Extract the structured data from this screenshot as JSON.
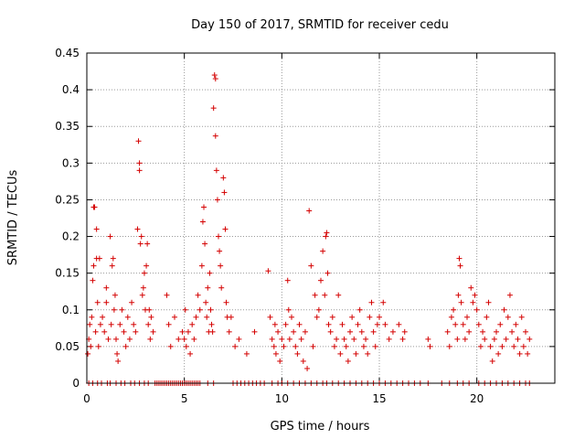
{
  "chart_data": {
    "type": "scatter",
    "title": "Day 150 of 2017, SRMTID for receiver cedu",
    "xlabel": "GPS time / hours",
    "ylabel": "SRMTID / TECUs",
    "xlim": [
      0,
      24
    ],
    "ylim": [
      0,
      0.45
    ],
    "xticks": [
      0,
      5,
      10,
      15,
      20
    ],
    "yticks": [
      0,
      0.05,
      0.1,
      0.15,
      0.2,
      0.25,
      0.3,
      0.35,
      0.4,
      0.45
    ],
    "marker": "+",
    "color": "#d40000",
    "grid": true,
    "series": [
      {
        "name": "SRMTID",
        "points": [
          [
            0.05,
            0.04
          ],
          [
            0.1,
            0.06
          ],
          [
            0.15,
            0.08
          ],
          [
            0.2,
            0.05
          ],
          [
            0.25,
            0.09
          ],
          [
            0.3,
            0.14
          ],
          [
            0.35,
            0.16
          ],
          [
            0.35,
            0.24
          ],
          [
            0.4,
            0.24
          ],
          [
            0.45,
            0.07
          ],
          [
            0.5,
            0.17
          ],
          [
            0.5,
            0.21
          ],
          [
            0.55,
            0.11
          ],
          [
            0.6,
            0.05
          ],
          [
            0.65,
            0.17
          ],
          [
            0.7,
            0.08
          ],
          [
            0.8,
            0.09
          ],
          [
            0.9,
            0.07
          ],
          [
            1.0,
            0.11
          ],
          [
            1.0,
            0.13
          ],
          [
            1.1,
            0.06
          ],
          [
            1.2,
            0.2
          ],
          [
            1.25,
            0.08
          ],
          [
            1.3,
            0.16
          ],
          [
            1.35,
            0.17
          ],
          [
            1.4,
            0.1
          ],
          [
            1.45,
            0.12
          ],
          [
            1.5,
            0.06
          ],
          [
            1.55,
            0.04
          ],
          [
            1.6,
            0.03
          ],
          [
            1.7,
            0.08
          ],
          [
            1.8,
            0.1
          ],
          [
            1.9,
            0.07
          ],
          [
            2.0,
            0.05
          ],
          [
            2.1,
            0.09
          ],
          [
            2.2,
            0.06
          ],
          [
            2.3,
            0.11
          ],
          [
            2.4,
            0.08
          ],
          [
            2.5,
            0.07
          ],
          [
            2.6,
            0.21
          ],
          [
            2.65,
            0.33
          ],
          [
            2.7,
            0.29
          ],
          [
            2.7,
            0.3
          ],
          [
            2.75,
            0.19
          ],
          [
            2.8,
            0.2
          ],
          [
            2.85,
            0.12
          ],
          [
            2.9,
            0.13
          ],
          [
            2.95,
            0.15
          ],
          [
            3.0,
            0.1
          ],
          [
            3.05,
            0.16
          ],
          [
            3.1,
            0.19
          ],
          [
            3.15,
            0.08
          ],
          [
            3.2,
            0.1
          ],
          [
            3.25,
            0.06
          ],
          [
            3.3,
            0.09
          ],
          [
            3.4,
            0.07
          ],
          [
            4.1,
            0.12
          ],
          [
            4.2,
            0.08
          ],
          [
            4.3,
            0.05
          ],
          [
            4.5,
            0.09
          ],
          [
            4.7,
            0.06
          ],
          [
            4.9,
            0.07
          ],
          [
            5.0,
            0.06
          ],
          [
            5.05,
            0.1
          ],
          [
            5.1,
            0.05
          ],
          [
            5.2,
            0.07
          ],
          [
            5.3,
            0.04
          ],
          [
            5.4,
            0.08
          ],
          [
            5.5,
            0.06
          ],
          [
            5.6,
            0.09
          ],
          [
            5.7,
            0.12
          ],
          [
            5.8,
            0.1
          ],
          [
            5.9,
            0.16
          ],
          [
            5.95,
            0.22
          ],
          [
            6.0,
            0.24
          ],
          [
            6.05,
            0.19
          ],
          [
            6.1,
            0.11
          ],
          [
            6.15,
            0.09
          ],
          [
            6.2,
            0.13
          ],
          [
            6.25,
            0.07
          ],
          [
            6.3,
            0.15
          ],
          [
            6.35,
            0.1
          ],
          [
            6.4,
            0.08
          ],
          [
            6.45,
            0.07
          ],
          [
            6.5,
            0.375
          ],
          [
            6.55,
            0.42
          ],
          [
            6.6,
            0.415
          ],
          [
            6.6,
            0.337
          ],
          [
            6.65,
            0.29
          ],
          [
            6.7,
            0.25
          ],
          [
            6.75,
            0.2
          ],
          [
            6.8,
            0.18
          ],
          [
            6.85,
            0.16
          ],
          [
            6.9,
            0.13
          ],
          [
            7.0,
            0.28
          ],
          [
            7.05,
            0.26
          ],
          [
            7.1,
            0.21
          ],
          [
            7.15,
            0.11
          ],
          [
            7.2,
            0.09
          ],
          [
            7.3,
            0.07
          ],
          [
            7.4,
            0.09
          ],
          [
            7.6,
            0.05
          ],
          [
            7.8,
            0.06
          ],
          [
            8.2,
            0.04
          ],
          [
            8.6,
            0.07
          ],
          [
            9.3,
            0.153
          ],
          [
            9.4,
            0.09
          ],
          [
            9.5,
            0.06
          ],
          [
            9.6,
            0.05
          ],
          [
            9.65,
            0.08
          ],
          [
            9.7,
            0.04
          ],
          [
            9.8,
            0.07
          ],
          [
            9.9,
            0.03
          ],
          [
            10.0,
            0.06
          ],
          [
            10.1,
            0.05
          ],
          [
            10.2,
            0.08
          ],
          [
            10.3,
            0.14
          ],
          [
            10.35,
            0.1
          ],
          [
            10.4,
            0.06
          ],
          [
            10.5,
            0.09
          ],
          [
            10.6,
            0.07
          ],
          [
            10.7,
            0.05
          ],
          [
            10.8,
            0.04
          ],
          [
            10.9,
            0.08
          ],
          [
            11.0,
            0.06
          ],
          [
            11.1,
            0.03
          ],
          [
            11.2,
            0.07
          ],
          [
            11.3,
            0.02
          ],
          [
            11.4,
            0.235
          ],
          [
            11.5,
            0.16
          ],
          [
            11.6,
            0.05
          ],
          [
            11.7,
            0.12
          ],
          [
            11.8,
            0.09
          ],
          [
            11.9,
            0.1
          ],
          [
            12.0,
            0.14
          ],
          [
            12.1,
            0.18
          ],
          [
            12.2,
            0.12
          ],
          [
            12.25,
            0.2
          ],
          [
            12.3,
            0.205
          ],
          [
            12.35,
            0.15
          ],
          [
            12.4,
            0.08
          ],
          [
            12.5,
            0.07
          ],
          [
            12.6,
            0.09
          ],
          [
            12.7,
            0.05
          ],
          [
            12.8,
            0.06
          ],
          [
            12.9,
            0.12
          ],
          [
            13.0,
            0.04
          ],
          [
            13.1,
            0.08
          ],
          [
            13.2,
            0.06
          ],
          [
            13.3,
            0.05
          ],
          [
            13.4,
            0.03
          ],
          [
            13.5,
            0.07
          ],
          [
            13.6,
            0.09
          ],
          [
            13.7,
            0.06
          ],
          [
            13.8,
            0.04
          ],
          [
            13.9,
            0.08
          ],
          [
            14.0,
            0.1
          ],
          [
            14.1,
            0.07
          ],
          [
            14.2,
            0.05
          ],
          [
            14.3,
            0.06
          ],
          [
            14.4,
            0.04
          ],
          [
            14.5,
            0.09
          ],
          [
            14.6,
            0.11
          ],
          [
            14.7,
            0.07
          ],
          [
            14.8,
            0.05
          ],
          [
            14.9,
            0.08
          ],
          [
            15.0,
            0.09
          ],
          [
            15.2,
            0.11
          ],
          [
            15.3,
            0.08
          ],
          [
            15.5,
            0.06
          ],
          [
            15.7,
            0.07
          ],
          [
            16.0,
            0.08
          ],
          [
            16.2,
            0.06
          ],
          [
            16.3,
            0.07
          ],
          [
            17.5,
            0.06
          ],
          [
            17.6,
            0.05
          ],
          [
            18.5,
            0.07
          ],
          [
            18.6,
            0.05
          ],
          [
            18.7,
            0.09
          ],
          [
            18.8,
            0.1
          ],
          [
            18.9,
            0.08
          ],
          [
            19.0,
            0.06
          ],
          [
            19.05,
            0.12
          ],
          [
            19.1,
            0.17
          ],
          [
            19.15,
            0.16
          ],
          [
            19.2,
            0.11
          ],
          [
            19.3,
            0.08
          ],
          [
            19.4,
            0.06
          ],
          [
            19.5,
            0.09
          ],
          [
            19.6,
            0.07
          ],
          [
            19.7,
            0.13
          ],
          [
            19.8,
            0.11
          ],
          [
            19.9,
            0.12
          ],
          [
            20.0,
            0.1
          ],
          [
            20.1,
            0.08
          ],
          [
            20.2,
            0.05
          ],
          [
            20.3,
            0.07
          ],
          [
            20.4,
            0.06
          ],
          [
            20.5,
            0.09
          ],
          [
            20.6,
            0.11
          ],
          [
            20.7,
            0.05
          ],
          [
            20.8,
            0.03
          ],
          [
            20.9,
            0.06
          ],
          [
            21.0,
            0.07
          ],
          [
            21.1,
            0.04
          ],
          [
            21.2,
            0.08
          ],
          [
            21.3,
            0.05
          ],
          [
            21.4,
            0.1
          ],
          [
            21.5,
            0.06
          ],
          [
            21.6,
            0.09
          ],
          [
            21.7,
            0.12
          ],
          [
            21.8,
            0.07
          ],
          [
            21.9,
            0.05
          ],
          [
            22.0,
            0.08
          ],
          [
            22.1,
            0.06
          ],
          [
            22.2,
            0.04
          ],
          [
            22.3,
            0.09
          ],
          [
            22.4,
            0.05
          ],
          [
            22.5,
            0.07
          ],
          [
            22.6,
            0.04
          ],
          [
            22.7,
            0.06
          ],
          [
            0.1,
            0
          ],
          [
            0.3,
            0
          ],
          [
            0.55,
            0
          ],
          [
            0.75,
            0
          ],
          [
            1.05,
            0
          ],
          [
            1.2,
            0
          ],
          [
            1.5,
            0
          ],
          [
            1.75,
            0
          ],
          [
            1.95,
            0
          ],
          [
            2.25,
            0
          ],
          [
            2.45,
            0
          ],
          [
            2.7,
            0
          ],
          [
            2.95,
            0
          ],
          [
            3.15,
            0
          ],
          [
            3.5,
            0
          ],
          [
            3.6,
            0
          ],
          [
            3.7,
            0
          ],
          [
            3.8,
            0
          ],
          [
            3.9,
            0
          ],
          [
            4.0,
            0
          ],
          [
            4.1,
            0
          ],
          [
            4.2,
            0
          ],
          [
            4.3,
            0
          ],
          [
            4.4,
            0
          ],
          [
            4.5,
            0
          ],
          [
            4.6,
            0
          ],
          [
            4.7,
            0
          ],
          [
            4.8,
            0
          ],
          [
            4.9,
            0
          ],
          [
            5.0,
            0
          ],
          [
            5.1,
            0
          ],
          [
            5.2,
            0
          ],
          [
            5.3,
            0
          ],
          [
            5.4,
            0
          ],
          [
            5.5,
            0
          ],
          [
            5.6,
            0
          ],
          [
            5.7,
            0
          ],
          [
            5.8,
            0
          ],
          [
            6.2,
            0
          ],
          [
            6.5,
            0
          ],
          [
            7.5,
            0
          ],
          [
            7.7,
            0
          ],
          [
            7.9,
            0
          ],
          [
            8.1,
            0
          ],
          [
            8.3,
            0
          ],
          [
            8.5,
            0
          ],
          [
            8.7,
            0
          ],
          [
            8.9,
            0
          ],
          [
            9.1,
            0
          ],
          [
            9.5,
            0
          ],
          [
            9.8,
            0
          ],
          [
            10.0,
            0
          ],
          [
            10.3,
            0
          ],
          [
            10.6,
            0
          ],
          [
            10.9,
            0
          ],
          [
            11.2,
            0
          ],
          [
            11.5,
            0
          ],
          [
            11.8,
            0
          ],
          [
            12.1,
            0
          ],
          [
            12.3,
            0
          ],
          [
            12.6,
            0
          ],
          [
            12.9,
            0
          ],
          [
            13.2,
            0
          ],
          [
            13.5,
            0
          ],
          [
            13.8,
            0
          ],
          [
            14.1,
            0
          ],
          [
            14.4,
            0
          ],
          [
            14.7,
            0
          ],
          [
            15.0,
            0
          ],
          [
            15.3,
            0
          ],
          [
            15.6,
            0
          ],
          [
            15.9,
            0
          ],
          [
            16.2,
            0
          ],
          [
            16.5,
            0
          ],
          [
            16.8,
            0
          ],
          [
            17.1,
            0
          ],
          [
            17.5,
            0
          ],
          [
            18.2,
            0
          ],
          [
            18.6,
            0
          ],
          [
            19.0,
            0
          ],
          [
            19.3,
            0
          ],
          [
            19.6,
            0
          ],
          [
            20.1,
            0
          ],
          [
            20.4,
            0
          ],
          [
            20.7,
            0
          ],
          [
            21.0,
            0
          ],
          [
            21.3,
            0
          ],
          [
            21.6,
            0
          ],
          [
            21.9,
            0
          ],
          [
            22.2,
            0
          ],
          [
            22.5,
            0
          ],
          [
            22.7,
            0
          ]
        ]
      }
    ]
  }
}
